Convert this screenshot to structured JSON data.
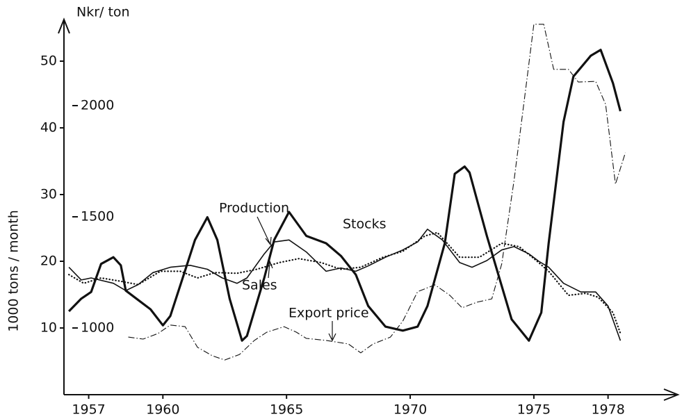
{
  "chart_data": {
    "type": "line",
    "ylabel": "1000 tons / month",
    "y2label": "Nkr/ ton",
    "xlim": [
      1956,
      1980.4
    ],
    "xticks": [
      1957,
      1960,
      1965,
      1970,
      1975,
      1978
    ],
    "ylim": [
      0,
      56
    ],
    "yticks": [
      10,
      20,
      30,
      40,
      50
    ],
    "y2lim": [
      700,
      2380
    ],
    "y2ticks": [
      1000,
      1500,
      2000
    ],
    "series": [
      {
        "name": "Production",
        "color": "#111111",
        "style": "solid",
        "x": [
          1956.2,
          1956.7,
          1957.1,
          1958.0,
          1958.5,
          1959.0,
          1959.6,
          1960.3,
          1961.1,
          1961.8,
          1962.4,
          1963.0,
          1963.4,
          1964.1,
          1964.5,
          1965.1,
          1965.8,
          1966.6,
          1967.2,
          1967.8,
          1968.3,
          1969.0,
          1969.7,
          1970.3,
          1970.7,
          1971.3,
          1972.0,
          1972.5,
          1973.1,
          1973.7,
          1974.2,
          1974.8,
          1975.2,
          1975.6,
          1976.2,
          1976.9,
          1977.5,
          1978.0,
          1978.5
        ],
        "values": [
          19.1,
          17.2,
          17.5,
          16.7,
          15.6,
          16.5,
          18.3,
          19.1,
          19.4,
          18.8,
          17.5,
          16.7,
          17.5,
          21.1,
          22.9,
          23.2,
          21.4,
          18.5,
          19.0,
          18.5,
          19.3,
          20.6,
          21.7,
          22.9,
          24.8,
          23.2,
          19.8,
          19.1,
          20.1,
          21.7,
          22.2,
          21.1,
          20.0,
          19.1,
          16.7,
          15.4,
          15.4,
          13.3,
          8.1
        ]
      },
      {
        "name": "Stocks",
        "color": "#111111",
        "style": "bold",
        "x": [
          1956.2,
          1956.7,
          1957.1,
          1957.5,
          1958.0,
          1958.3,
          1958.5,
          1959.0,
          1959.5,
          1960.0,
          1960.3,
          1960.8,
          1961.3,
          1961.8,
          1962.2,
          1962.7,
          1963.2,
          1963.4,
          1964.1,
          1964.5,
          1965.1,
          1965.8,
          1966.6,
          1967.2,
          1967.8,
          1968.3,
          1969.0,
          1969.7,
          1970.3,
          1970.7,
          1971.4,
          1971.8,
          1972.2,
          1972.4,
          1973.1,
          1974.1,
          1974.8,
          1975.3,
          1975.6,
          1976.2,
          1976.6,
          1977.3,
          1977.7,
          1978.2,
          1978.5
        ],
        "values": [
          12.5,
          14.4,
          15.4,
          19.6,
          20.6,
          19.4,
          15.6,
          14.2,
          12.8,
          10.4,
          11.8,
          17.5,
          23.2,
          26.6,
          23.2,
          14.4,
          8.1,
          8.8,
          17.5,
          23.2,
          27.4,
          23.8,
          22.7,
          20.8,
          18.0,
          13.3,
          10.2,
          9.6,
          10.2,
          13.3,
          22.7,
          33.1,
          34.2,
          33.3,
          23.8,
          11.3,
          8.1,
          12.3,
          22.7,
          40.9,
          47.7,
          50.8,
          51.7,
          46.7,
          42.5
        ]
      },
      {
        "name": "Sales",
        "color": "#111111",
        "style": "dotted",
        "x": [
          1956.2,
          1956.8,
          1957.5,
          1958.3,
          1959.0,
          1959.9,
          1960.7,
          1961.4,
          1962.1,
          1963.0,
          1963.8,
          1964.7,
          1965.5,
          1966.4,
          1967.2,
          1968.0,
          1968.9,
          1969.7,
          1970.6,
          1971.1,
          1972.0,
          1972.8,
          1973.7,
          1974.4,
          1975.1,
          1975.6,
          1976.4,
          1977.1,
          1977.6,
          1978.2,
          1978.5
        ],
        "values": [
          18.0,
          16.7,
          17.5,
          17.0,
          16.5,
          18.5,
          18.5,
          17.5,
          18.3,
          18.2,
          18.8,
          19.8,
          20.4,
          19.8,
          18.8,
          19.1,
          20.6,
          21.5,
          23.8,
          24.3,
          20.6,
          20.6,
          22.7,
          22.2,
          20.1,
          18.5,
          14.9,
          15.2,
          14.6,
          12.3,
          9.2
        ]
      },
      {
        "name": "Export price",
        "color": "#111111",
        "style": "dashdot",
        "axis": "y2",
        "x": [
          1958.6,
          1959.2,
          1959.8,
          1960.3,
          1960.9,
          1961.4,
          1962.0,
          1962.5,
          1963.1,
          1963.7,
          1964.2,
          1964.9,
          1965.4,
          1965.8,
          1966.6,
          1967.5,
          1968.0,
          1968.5,
          1969.2,
          1969.7,
          1970.3,
          1971.0,
          1971.6,
          1972.1,
          1972.7,
          1973.3,
          1973.7,
          1974.2,
          1974.7,
          1975.0,
          1975.4,
          1975.8,
          1976.4,
          1976.8,
          1977.5,
          1977.9,
          1978.3,
          1978.7
        ],
        "values": [
          959,
          950,
          975,
          1013,
          1006,
          913,
          875,
          856,
          881,
          944,
          981,
          1006,
          981,
          953,
          944,
          928,
          888,
          928,
          959,
          1031,
          1163,
          1194,
          1147,
          1091,
          1116,
          1131,
          1288,
          1663,
          2100,
          2366,
          2366,
          2163,
          2163,
          2106,
          2109,
          2006,
          1647,
          1788
        ]
      }
    ]
  }
}
